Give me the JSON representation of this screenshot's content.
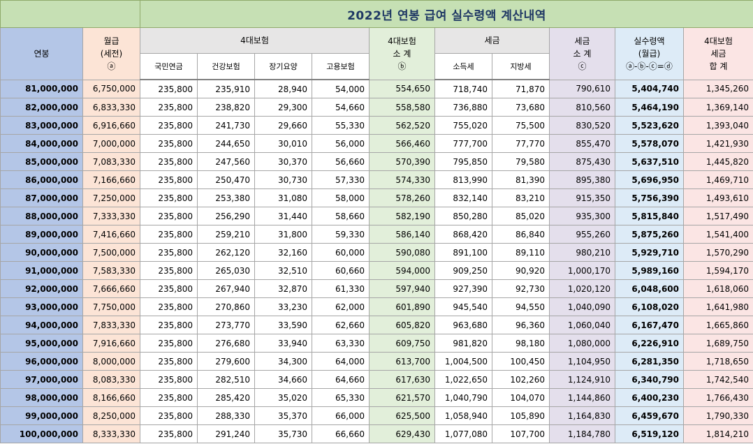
{
  "sheet": {
    "title": "2022년 연봉 급여 실수령액 계산내역",
    "headers": {
      "annual": "연봉",
      "monthly_l1": "월급",
      "monthly_l2": "(세전)",
      "monthly_l3": "ⓐ",
      "ins_group": "4대보험",
      "ins_pension": "국민연금",
      "ins_health": "건강보험",
      "ins_care": "장기요양",
      "ins_employ": "고용보험",
      "ins_sum_l1": "4대보험",
      "ins_sum_l2": "소 계",
      "ins_sum_l3": "ⓑ",
      "tax_group": "세금",
      "tax_income": "소득세",
      "tax_local": "지방세",
      "tax_sum_l1": "세금",
      "tax_sum_l2": "소 계",
      "tax_sum_l3": "ⓒ",
      "net_l1": "실수령액",
      "net_l2": "(월급)",
      "net_l3": "ⓐ-ⓑ-ⓒ=ⓓ",
      "total_l1": "4대보험",
      "total_l2": "세금",
      "total_l3": "합 계"
    },
    "rows": [
      [
        "81,000,000",
        "6,750,000",
        "235,800",
        "235,910",
        "28,940",
        "54,000",
        "554,650",
        "718,740",
        "71,870",
        "790,610",
        "5,404,740",
        "1,345,260"
      ],
      [
        "82,000,000",
        "6,833,330",
        "235,800",
        "238,820",
        "29,300",
        "54,660",
        "558,580",
        "736,880",
        "73,680",
        "810,560",
        "5,464,190",
        "1,369,140"
      ],
      [
        "83,000,000",
        "6,916,660",
        "235,800",
        "241,730",
        "29,660",
        "55,330",
        "562,520",
        "755,020",
        "75,500",
        "830,520",
        "5,523,620",
        "1,393,040"
      ],
      [
        "84,000,000",
        "7,000,000",
        "235,800",
        "244,650",
        "30,010",
        "56,000",
        "566,460",
        "777,700",
        "77,770",
        "855,470",
        "5,578,070",
        "1,421,930"
      ],
      [
        "85,000,000",
        "7,083,330",
        "235,800",
        "247,560",
        "30,370",
        "56,660",
        "570,390",
        "795,850",
        "79,580",
        "875,430",
        "5,637,510",
        "1,445,820"
      ],
      [
        "86,000,000",
        "7,166,660",
        "235,800",
        "250,470",
        "30,730",
        "57,330",
        "574,330",
        "813,990",
        "81,390",
        "895,380",
        "5,696,950",
        "1,469,710"
      ],
      [
        "87,000,000",
        "7,250,000",
        "235,800",
        "253,380",
        "31,080",
        "58,000",
        "578,260",
        "832,140",
        "83,210",
        "915,350",
        "5,756,390",
        "1,493,610"
      ],
      [
        "88,000,000",
        "7,333,330",
        "235,800",
        "256,290",
        "31,440",
        "58,660",
        "582,190",
        "850,280",
        "85,020",
        "935,300",
        "5,815,840",
        "1,517,490"
      ],
      [
        "89,000,000",
        "7,416,660",
        "235,800",
        "259,210",
        "31,800",
        "59,330",
        "586,140",
        "868,420",
        "86,840",
        "955,260",
        "5,875,260",
        "1,541,400"
      ],
      [
        "90,000,000",
        "7,500,000",
        "235,800",
        "262,120",
        "32,160",
        "60,000",
        "590,080",
        "891,100",
        "89,110",
        "980,210",
        "5,929,710",
        "1,570,290"
      ],
      [
        "91,000,000",
        "7,583,330",
        "235,800",
        "265,030",
        "32,510",
        "60,660",
        "594,000",
        "909,250",
        "90,920",
        "1,000,170",
        "5,989,160",
        "1,594,170"
      ],
      [
        "92,000,000",
        "7,666,660",
        "235,800",
        "267,940",
        "32,870",
        "61,330",
        "597,940",
        "927,390",
        "92,730",
        "1,020,120",
        "6,048,600",
        "1,618,060"
      ],
      [
        "93,000,000",
        "7,750,000",
        "235,800",
        "270,860",
        "33,230",
        "62,000",
        "601,890",
        "945,540",
        "94,550",
        "1,040,090",
        "6,108,020",
        "1,641,980"
      ],
      [
        "94,000,000",
        "7,833,330",
        "235,800",
        "273,770",
        "33,590",
        "62,660",
        "605,820",
        "963,680",
        "96,360",
        "1,060,040",
        "6,167,470",
        "1,665,860"
      ],
      [
        "95,000,000",
        "7,916,660",
        "235,800",
        "276,680",
        "33,940",
        "63,330",
        "609,750",
        "981,820",
        "98,180",
        "1,080,000",
        "6,226,910",
        "1,689,750"
      ],
      [
        "96,000,000",
        "8,000,000",
        "235,800",
        "279,600",
        "34,300",
        "64,000",
        "613,700",
        "1,004,500",
        "100,450",
        "1,104,950",
        "6,281,350",
        "1,718,650"
      ],
      [
        "97,000,000",
        "8,083,330",
        "235,800",
        "282,510",
        "34,660",
        "64,660",
        "617,630",
        "1,022,650",
        "102,260",
        "1,124,910",
        "6,340,790",
        "1,742,540"
      ],
      [
        "98,000,000",
        "8,166,660",
        "235,800",
        "285,420",
        "35,020",
        "65,330",
        "621,570",
        "1,040,790",
        "104,070",
        "1,144,860",
        "6,400,230",
        "1,766,430"
      ],
      [
        "99,000,000",
        "8,250,000",
        "235,800",
        "288,330",
        "35,370",
        "66,000",
        "625,500",
        "1,058,940",
        "105,890",
        "1,164,830",
        "6,459,670",
        "1,790,330"
      ],
      [
        "100,000,000",
        "8,333,330",
        "235,800",
        "291,240",
        "35,730",
        "66,660",
        "629,430",
        "1,077,080",
        "107,700",
        "1,184,780",
        "6,519,120",
        "1,814,210"
      ]
    ]
  }
}
